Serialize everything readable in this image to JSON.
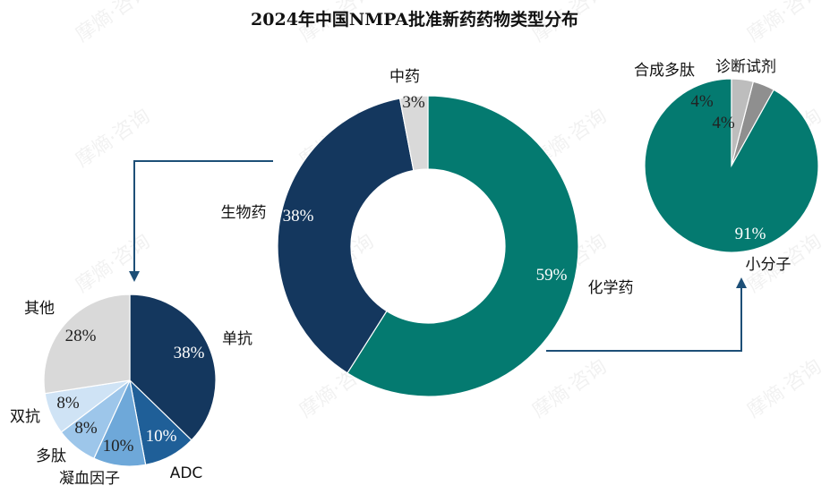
{
  "title": "2024年中国NMPA批准新药药物类型分布",
  "watermark": "摩熵·咨询",
  "arrow_color": "#1d4f77",
  "chart_data": [
    {
      "type": "pie",
      "variant": "donut",
      "id": "main",
      "categories": [
        "化学药",
        "生物药",
        "中药"
      ],
      "values": [
        59,
        38,
        3
      ],
      "labels": [
        "59%",
        "38%",
        "3%"
      ],
      "colors": [
        "#047a70",
        "#14375e",
        "#d9d9d9"
      ]
    },
    {
      "type": "pie",
      "id": "biologics",
      "categories": [
        "单抗",
        "ADC",
        "凝血因子",
        "多肽",
        "双抗",
        "其他"
      ],
      "values": [
        38,
        10,
        10,
        8,
        8,
        28
      ],
      "labels": [
        "38%",
        "10%",
        "10%",
        "8%",
        "8%",
        "28%"
      ],
      "colors": [
        "#14375e",
        "#1f5f98",
        "#6ea8d9",
        "#9dc6ea",
        "#cfe3f5",
        "#d9d9d9"
      ]
    },
    {
      "type": "pie",
      "id": "chemical",
      "categories": [
        "小分子",
        "合成多肽",
        "诊断试剂"
      ],
      "values": [
        91,
        4,
        4
      ],
      "labels": [
        "91%",
        "4%",
        "4%"
      ],
      "colors": [
        "#047a70",
        "#8f8f8f",
        "#bdbdbd"
      ]
    }
  ]
}
